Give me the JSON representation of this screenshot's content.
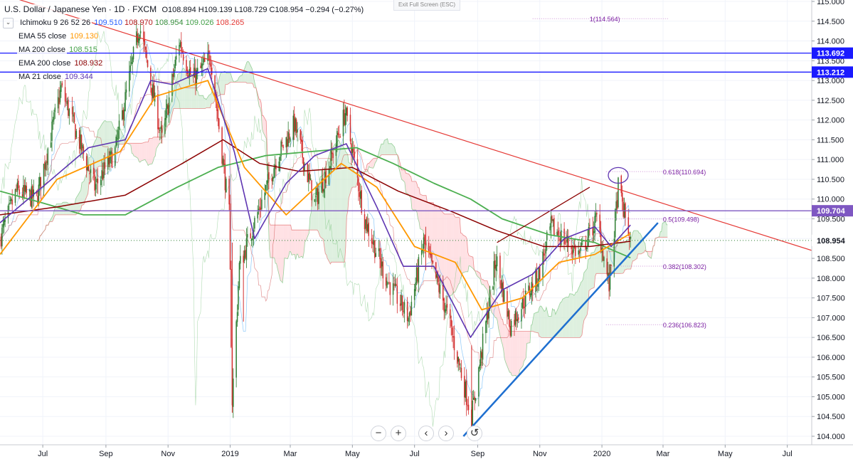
{
  "header": {
    "title": "U.S. Dollar / Japanese Yen · 1D · FXCM",
    "ohlc": "O108.894  H109.139  L108.729  C108.954  −0.294 (−0.27%)",
    "exit_fullscreen": "Exit Full Screen (ESC)"
  },
  "indicators": [
    {
      "name": "Ichimoku 9 26 52 26",
      "values": [
        "109.510",
        "108.970",
        "108.954",
        "109.026",
        "108.265"
      ],
      "colors": [
        "#2962ff",
        "#b71c1c",
        "#388e3c",
        "#43a047",
        "#e53935"
      ]
    },
    {
      "name": "EMA 55 close",
      "value": "109.130",
      "color": "#ff9800"
    },
    {
      "name": "MA 200 close",
      "value": "108.515",
      "color": "#43a047"
    },
    {
      "name": "EMA 200 close",
      "value": "108.932",
      "color": "#8b0000"
    },
    {
      "name": "MA 21 close",
      "value": "109.344",
      "color": "#5e35b1"
    }
  ],
  "colors": {
    "bull": "#2e7d32",
    "bear": "#d32f2f",
    "ema55": "#ff9800",
    "ma200": "#4caf50",
    "ema200": "#8b0000",
    "ma21": "#5e35b1",
    "blue_line": "#1a1aff",
    "purple_line": "#7e57c2",
    "trend_red": "#e53935",
    "support_blue": "#1e6fd0",
    "cloud_green": "#c8e6c9",
    "cloud_red": "#ffcdd2"
  },
  "nav": {
    "zoom_out": "−",
    "zoom_in": "+",
    "back": "‹",
    "forward": "›",
    "reset": "↺"
  },
  "chart_data": {
    "type": "candlestick",
    "yaxis": {
      "min": 104.0,
      "max": 115.0,
      "step": 0.5
    },
    "xaxis": {
      "range": [
        "2018-05-20",
        "2020-07-25"
      ],
      "labels": [
        {
          "text": "Jul",
          "date": "2018-07-01"
        },
        {
          "text": "Sep",
          "date": "2018-09-01"
        },
        {
          "text": "Nov",
          "date": "2018-11-01"
        },
        {
          "text": "2019",
          "date": "2019-01-01"
        },
        {
          "text": "Mar",
          "date": "2019-03-01"
        },
        {
          "text": "May",
          "date": "2019-05-01"
        },
        {
          "text": "Jul",
          "date": "2019-07-01"
        },
        {
          "text": "Sep",
          "date": "2019-09-01"
        },
        {
          "text": "Nov",
          "date": "2019-11-01"
        },
        {
          "text": "2020",
          "date": "2020-01-01"
        },
        {
          "text": "Mar",
          "date": "2020-03-01"
        },
        {
          "text": "May",
          "date": "2020-05-01"
        },
        {
          "text": "Jul",
          "date": "2020-07-01"
        }
      ]
    },
    "price_path": [
      [
        "2018-05-20",
        109.0
      ],
      [
        "2018-06-05",
        110.2
      ],
      [
        "2018-06-25",
        110.0
      ],
      [
        "2018-07-19",
        112.8
      ],
      [
        "2018-08-21",
        110.3
      ],
      [
        "2018-09-10",
        111.2
      ],
      [
        "2018-10-04",
        114.4
      ],
      [
        "2018-10-26",
        111.5
      ],
      [
        "2018-11-12",
        114.0
      ],
      [
        "2018-11-25",
        113.0
      ],
      [
        "2018-12-13",
        113.6
      ],
      [
        "2018-12-31",
        109.6
      ],
      [
        "2019-01-03",
        104.9
      ],
      [
        "2019-01-10",
        108.3
      ],
      [
        "2019-02-15",
        111.0
      ],
      [
        "2019-03-05",
        111.9
      ],
      [
        "2019-03-25",
        109.9
      ],
      [
        "2019-04-10",
        111.0
      ],
      [
        "2019-04-24",
        112.2
      ],
      [
        "2019-05-13",
        109.5
      ],
      [
        "2019-06-03",
        108.0
      ],
      [
        "2019-06-25",
        107.0
      ],
      [
        "2019-07-10",
        108.9
      ],
      [
        "2019-08-01",
        107.2
      ],
      [
        "2019-08-26",
        104.5
      ],
      [
        "2019-09-19",
        108.5
      ],
      [
        "2019-10-03",
        106.8
      ],
      [
        "2019-10-31",
        108.1
      ],
      [
        "2019-11-12",
        109.3
      ],
      [
        "2019-12-10",
        108.6
      ],
      [
        "2019-12-27",
        109.5
      ],
      [
        "2020-01-08",
        107.8
      ],
      [
        "2020-01-17",
        110.3
      ],
      [
        "2020-01-29",
        108.95
      ]
    ],
    "lines": {
      "ema55": [
        [
          "2018-05-20",
          108.6
        ],
        [
          "2018-07-15",
          110.5
        ],
        [
          "2018-09-15",
          111.2
        ],
        [
          "2018-10-20",
          112.6
        ],
        [
          "2018-12-10",
          113.0
        ],
        [
          "2019-01-15",
          110.8
        ],
        [
          "2019-02-25",
          109.6
        ],
        [
          "2019-04-20",
          110.9
        ],
        [
          "2019-05-25",
          110.3
        ],
        [
          "2019-07-01",
          108.8
        ],
        [
          "2019-08-10",
          108.4
        ],
        [
          "2019-09-05",
          107.2
        ],
        [
          "2019-10-15",
          107.5
        ],
        [
          "2019-11-20",
          108.4
        ],
        [
          "2019-12-25",
          108.6
        ],
        [
          "2020-01-29",
          109.13
        ]
      ],
      "ma200": [
        [
          "2018-05-20",
          110.2
        ],
        [
          "2018-07-01",
          109.9
        ],
        [
          "2018-08-10",
          109.6
        ],
        [
          "2018-09-20",
          109.6
        ],
        [
          "2018-11-10",
          110.3
        ],
        [
          "2018-12-20",
          110.8
        ],
        [
          "2019-02-05",
          111.1
        ],
        [
          "2019-03-20",
          111.2
        ],
        [
          "2019-05-05",
          111.3
        ],
        [
          "2019-06-10",
          110.9
        ],
        [
          "2019-07-20",
          110.4
        ],
        [
          "2019-08-25",
          110.0
        ],
        [
          "2019-09-25",
          109.5
        ],
        [
          "2019-11-10",
          109.1
        ],
        [
          "2019-12-25",
          108.9
        ],
        [
          "2020-01-29",
          108.515
        ]
      ],
      "ema200": [
        [
          "2018-05-20",
          109.6
        ],
        [
          "2018-07-15",
          109.8
        ],
        [
          "2018-09-20",
          110.1
        ],
        [
          "2018-11-15",
          110.9
        ],
        [
          "2018-12-25",
          111.5
        ],
        [
          "2019-01-30",
          110.9
        ],
        [
          "2019-03-10",
          110.7
        ],
        [
          "2019-05-01",
          110.8
        ],
        [
          "2019-06-15",
          110.2
        ],
        [
          "2019-08-05",
          109.7
        ],
        [
          "2019-09-20",
          109.2
        ],
        [
          "2019-11-05",
          108.8
        ],
        [
          "2019-12-20",
          108.8
        ],
        [
          "2020-01-29",
          108.932
        ]
      ],
      "ma21": [
        [
          "2018-05-20",
          109.4
        ],
        [
          "2018-07-05",
          110.4
        ],
        [
          "2018-08-15",
          111.3
        ],
        [
          "2018-09-20",
          111.5
        ],
        [
          "2018-10-15",
          113.0
        ],
        [
          "2018-11-05",
          112.9
        ],
        [
          "2018-12-10",
          113.3
        ],
        [
          "2019-01-05",
          111.2
        ],
        [
          "2019-01-25",
          109.0
        ],
        [
          "2019-02-25",
          110.4
        ],
        [
          "2019-03-25",
          111.1
        ],
        [
          "2019-04-25",
          111.4
        ],
        [
          "2019-05-25",
          109.8
        ],
        [
          "2019-06-20",
          108.3
        ],
        [
          "2019-07-20",
          108.3
        ],
        [
          "2019-08-25",
          106.5
        ],
        [
          "2019-09-25",
          107.7
        ],
        [
          "2019-10-25",
          108.1
        ],
        [
          "2019-11-25",
          109.0
        ],
        [
          "2019-12-25",
          109.3
        ],
        [
          "2020-01-10",
          108.8
        ],
        [
          "2020-01-29",
          109.344
        ]
      ]
    },
    "horizontal_lines": [
      {
        "price": 113.692,
        "label": "113.692",
        "color": "#1a1aff"
      },
      {
        "price": 113.212,
        "label": "113.212",
        "color": "#1a1aff"
      },
      {
        "price": 109.704,
        "label": "109.704",
        "color": "#7e57c2"
      }
    ],
    "current_price": {
      "price": 108.954,
      "label": "108.954"
    },
    "trendlines": [
      {
        "name": "resistance",
        "from": [
          "2018-05-20",
          115.2
        ],
        "to": [
          "2020-07-25",
          108.7
        ],
        "color": "#e53935"
      },
      {
        "name": "support",
        "from": [
          "2019-08-18",
          104.0
        ],
        "to": [
          "2020-02-25",
          109.4
        ],
        "color": "#1e6fd0"
      },
      {
        "name": "channel",
        "from": [
          "2019-09-20",
          108.9
        ],
        "to": [
          "2019-12-20",
          110.3
        ],
        "color": "#8b0000"
      }
    ],
    "fib_levels": [
      {
        "label": "1(114.564)",
        "price": 114.564,
        "x_from": "2019-10-25",
        "x_to": "2020-03-07"
      },
      {
        "label": "0.618(110.694)",
        "price": 110.694,
        "x_from": "2020-01-05",
        "x_to": "2020-03-07"
      },
      {
        "label": "0.5(109.498)",
        "price": 109.498,
        "x_from": "2020-01-05",
        "x_to": "2020-03-07"
      },
      {
        "label": "0.382(108.302)",
        "price": 108.302,
        "x_from": "2020-01-05",
        "x_to": "2020-03-07"
      },
      {
        "label": "0.236(106.823)",
        "price": 106.823,
        "x_from": "2020-01-05",
        "x_to": "2020-03-07"
      }
    ],
    "highlight_ellipse": {
      "date": "2020-01-17",
      "price": 110.6
    }
  }
}
